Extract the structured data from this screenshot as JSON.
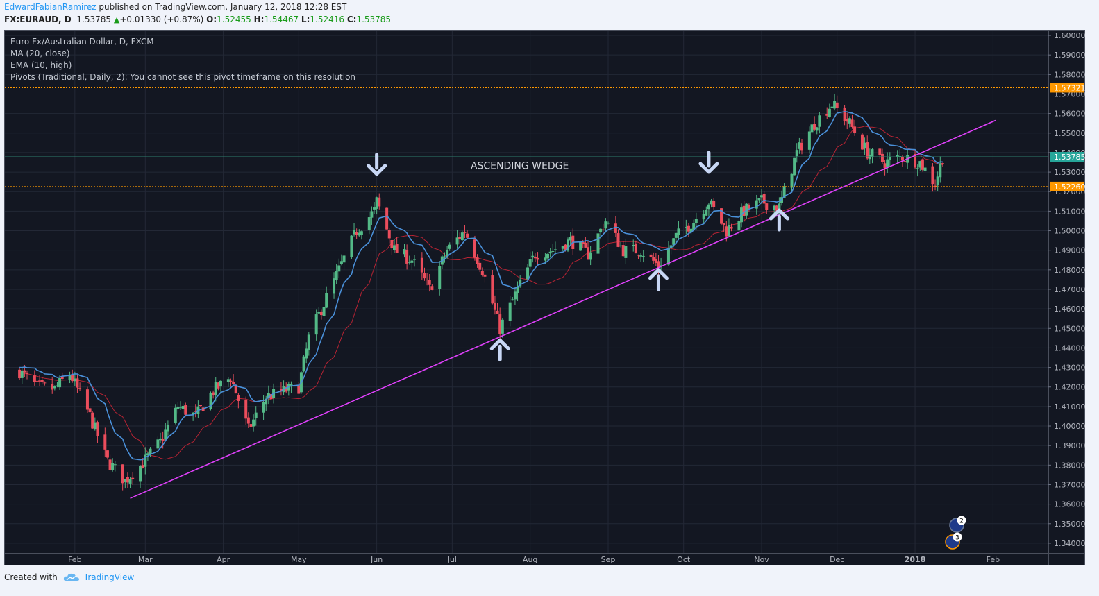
{
  "header": {
    "author": "EdwardFabianRamirez",
    "published_text": "published on TradingView.com, January 12, 2018 12:28 EST",
    "symbol": "FX:EURAUD, D",
    "last_price": "1.53785",
    "change": "+0.01330 (+0.87%)",
    "open_label": "O:",
    "open": "1.52455",
    "high_label": "H:",
    "high": "1.54467",
    "low_label": "L:",
    "low": "1.52416",
    "close_label": "C:",
    "close": "1.53785"
  },
  "legend": {
    "title": "Euro Fx/Australian Dollar, D, FXCM",
    "ma": "MA (20, close)",
    "ema": "EMA (10, high)",
    "pivots": "Pivots (Traditional, Daily, 2): You cannot see this pivot timeframe on this resolution"
  },
  "footer": {
    "created_with": "Created with",
    "brand": "TradingView"
  },
  "colors": {
    "background": "#131722",
    "up_candle": "#53b987",
    "down_candle": "#eb4d5c",
    "ma_line": "#b82434",
    "ema_line": "#4a90d9",
    "trendline": "#e040fb",
    "level_line": "#ff9800",
    "price_label": "#26a69a",
    "arrow": "#c8d7f5"
  },
  "chart_data": {
    "type": "candlestick",
    "title": "Euro Fx/Australian Dollar, D, FXCM",
    "annotation": "ASCENDING WEDGE",
    "y_ticks": [
      "1.60000",
      "1.59000",
      "1.58000",
      "1.57000",
      "1.56000",
      "1.55000",
      "1.54000",
      "1.53000",
      "1.52000",
      "1.51000",
      "1.50000",
      "1.49000",
      "1.48000",
      "1.47000",
      "1.46000",
      "1.45000",
      "1.44000",
      "1.43000",
      "1.42000",
      "1.41000",
      "1.40000",
      "1.39000",
      "1.38000",
      "1.37000",
      "1.36000",
      "1.35000",
      "1.34000"
    ],
    "ylim": [
      1.335,
      1.6025
    ],
    "x_ticks": [
      "Feb",
      "Mar",
      "Apr",
      "May",
      "Jun",
      "Jul",
      "Aug",
      "Sep",
      "Oct",
      "Nov",
      "Dec",
      "2018",
      "Feb"
    ],
    "price_labels": [
      {
        "text": "1.57321",
        "value": 1.57321,
        "kind": "level"
      },
      {
        "text": "1.53785",
        "value": 1.53785,
        "kind": "last"
      },
      {
        "text": "1.52260",
        "value": 1.5226,
        "kind": "level"
      }
    ],
    "horizontal_levels": [
      1.57321,
      1.5226,
      1.53785
    ],
    "trendline": {
      "from": [
        "2017-02-23",
        1.363
      ],
      "to": [
        "2018-02-02",
        1.5565
      ]
    },
    "down_arrows": [
      [
        "2017-06-01",
        1.534
      ],
      [
        "2017-10-11",
        1.535
      ]
    ],
    "up_arrows": [
      [
        "2017-07-20",
        1.439
      ],
      [
        "2017-09-21",
        1.475
      ],
      [
        "2017-11-08",
        1.5055
      ]
    ],
    "badges": [
      "2",
      "3"
    ],
    "anchor_points": [
      [
        "2017-01-10",
        1.428
      ],
      [
        "2017-01-17",
        1.42
      ],
      [
        "2017-01-24",
        1.419
      ],
      [
        "2017-01-30",
        1.427
      ],
      [
        "2017-02-07",
        1.405
      ],
      [
        "2017-02-14",
        1.382
      ],
      [
        "2017-02-21",
        1.372
      ],
      [
        "2017-02-28",
        1.381
      ],
      [
        "2017-03-07",
        1.392
      ],
      [
        "2017-03-14",
        1.41
      ],
      [
        "2017-03-21",
        1.405
      ],
      [
        "2017-03-28",
        1.418
      ],
      [
        "2017-04-04",
        1.425
      ],
      [
        "2017-04-11",
        1.398
      ],
      [
        "2017-04-18",
        1.415
      ],
      [
        "2017-04-25",
        1.418
      ],
      [
        "2017-05-01",
        1.42
      ],
      [
        "2017-05-05",
        1.445
      ],
      [
        "2017-05-10",
        1.46
      ],
      [
        "2017-05-17",
        1.48
      ],
      [
        "2017-05-24",
        1.5
      ],
      [
        "2017-05-31",
        1.51
      ],
      [
        "2017-06-01",
        1.515
      ],
      [
        "2017-06-08",
        1.49
      ],
      [
        "2017-06-15",
        1.485
      ],
      [
        "2017-06-22",
        1.47
      ],
      [
        "2017-06-29",
        1.49
      ],
      [
        "2017-07-06",
        1.5
      ],
      [
        "2017-07-13",
        1.48
      ],
      [
        "2017-07-20",
        1.45
      ],
      [
        "2017-07-27",
        1.47
      ],
      [
        "2017-08-03",
        1.488
      ],
      [
        "2017-08-10",
        1.49
      ],
      [
        "2017-08-17",
        1.495
      ],
      [
        "2017-08-24",
        1.488
      ],
      [
        "2017-08-31",
        1.505
      ],
      [
        "2017-09-07",
        1.49
      ],
      [
        "2017-09-14",
        1.49
      ],
      [
        "2017-09-21",
        1.482
      ],
      [
        "2017-09-28",
        1.497
      ],
      [
        "2017-10-05",
        1.505
      ],
      [
        "2017-10-11",
        1.515
      ],
      [
        "2017-10-18",
        1.5
      ],
      [
        "2017-10-25",
        1.51
      ],
      [
        "2017-11-01",
        1.515
      ],
      [
        "2017-11-08",
        1.512
      ],
      [
        "2017-11-15",
        1.54
      ],
      [
        "2017-11-22",
        1.555
      ],
      [
        "2017-11-29",
        1.565
      ],
      [
        "2017-12-06",
        1.555
      ],
      [
        "2017-12-13",
        1.54
      ],
      [
        "2017-12-20",
        1.535
      ],
      [
        "2017-12-27",
        1.538
      ],
      [
        "2018-01-03",
        1.535
      ],
      [
        "2018-01-09",
        1.524
      ],
      [
        "2018-01-12",
        1.538
      ]
    ]
  }
}
